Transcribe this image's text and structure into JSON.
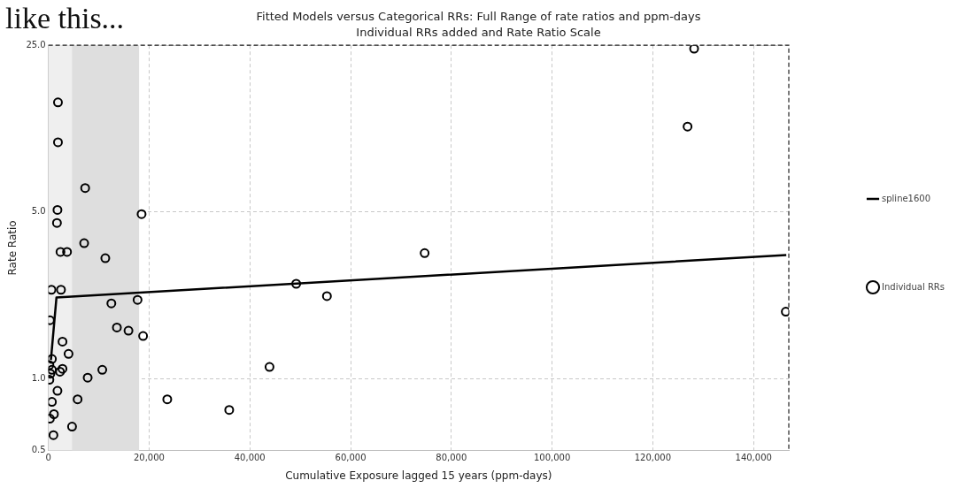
{
  "chart_data": {
    "type": "scatter",
    "title": "Fitted Models versus Categorical RRs: Full Range of rate ratios and ppm-days",
    "subtitle": "Individual RRs added and Rate Ratio Scale",
    "xlabel": "Cumulative Exposure lagged 15 years (ppm-days)",
    "ylabel": "Rate Ratio",
    "annotations": [
      "like this..."
    ],
    "log": "y",
    "grid": true,
    "legend": "right",
    "xlim": [
      0,
      147000
    ],
    "xticks": [
      0,
      {
        "value": 20000,
        "label": "20,000"
      },
      {
        "value": 40000,
        "label": "40,000"
      },
      {
        "value": 60000,
        "label": "60,000"
      },
      {
        "value": 80000,
        "label": "80,000"
      },
      {
        "value": 100000,
        "label": "100,000"
      },
      {
        "value": 120000,
        "label": "120,000"
      },
      {
        "value": 140000,
        "label": "140,000"
      }
    ],
    "ylim": [
      0.5,
      25
    ],
    "yticks": [
      {
        "value": 0.5,
        "label": "0.5"
      },
      {
        "value": 1,
        "label": "1.0"
      },
      {
        "value": 5,
        "label": "5.0"
      },
      {
        "value": 25,
        "label": "25.0"
      }
    ],
    "bands": [
      {
        "axis": "x",
        "from": 0,
        "to": 18000,
        "color": "#efefef"
      },
      {
        "axis": "x",
        "from": 4700,
        "to": 18000,
        "color": "#dedede"
      }
    ],
    "series": [
      {
        "name": "spline1600",
        "type": "line",
        "color": "#000000",
        "marker": "none",
        "line_style": "solid",
        "x": [
          500,
          1600,
          146500
        ],
        "values": [
          1.2,
          2.19,
          3.3
        ]
      },
      {
        "name": "Individual RRs",
        "color": "#000000",
        "marker": "circle",
        "x": [
          1900,
          1900,
          7300,
          1800,
          18500,
          1700,
          7100,
          2400,
          3700,
          11300,
          600,
          2500,
          12500,
          17700,
          300,
          13600,
          15900,
          18800,
          2800,
          4000,
          700,
          200,
          700,
          2800,
          2300,
          400,
          10700,
          200,
          7800,
          1800,
          700,
          5800,
          23600,
          35900,
          1100,
          300,
          4700,
          1000,
          43900,
          49200,
          55300,
          74700,
          126900,
          128200,
          146400
        ],
        "values": [
          14.4,
          9.8,
          6.3,
          5.1,
          4.9,
          4.5,
          3.7,
          3.4,
          3.4,
          3.2,
          2.36,
          2.36,
          2.07,
          2.14,
          1.76,
          1.64,
          1.59,
          1.51,
          1.43,
          1.27,
          1.21,
          1.14,
          1.09,
          1.1,
          1.07,
          1.05,
          1.09,
          0.99,
          1.01,
          0.89,
          0.8,
          0.82,
          0.82,
          0.74,
          0.71,
          0.68,
          0.63,
          0.58,
          1.12,
          2.5,
          2.22,
          3.36,
          11.4,
          24.2,
          1.91
        ]
      }
    ]
  }
}
